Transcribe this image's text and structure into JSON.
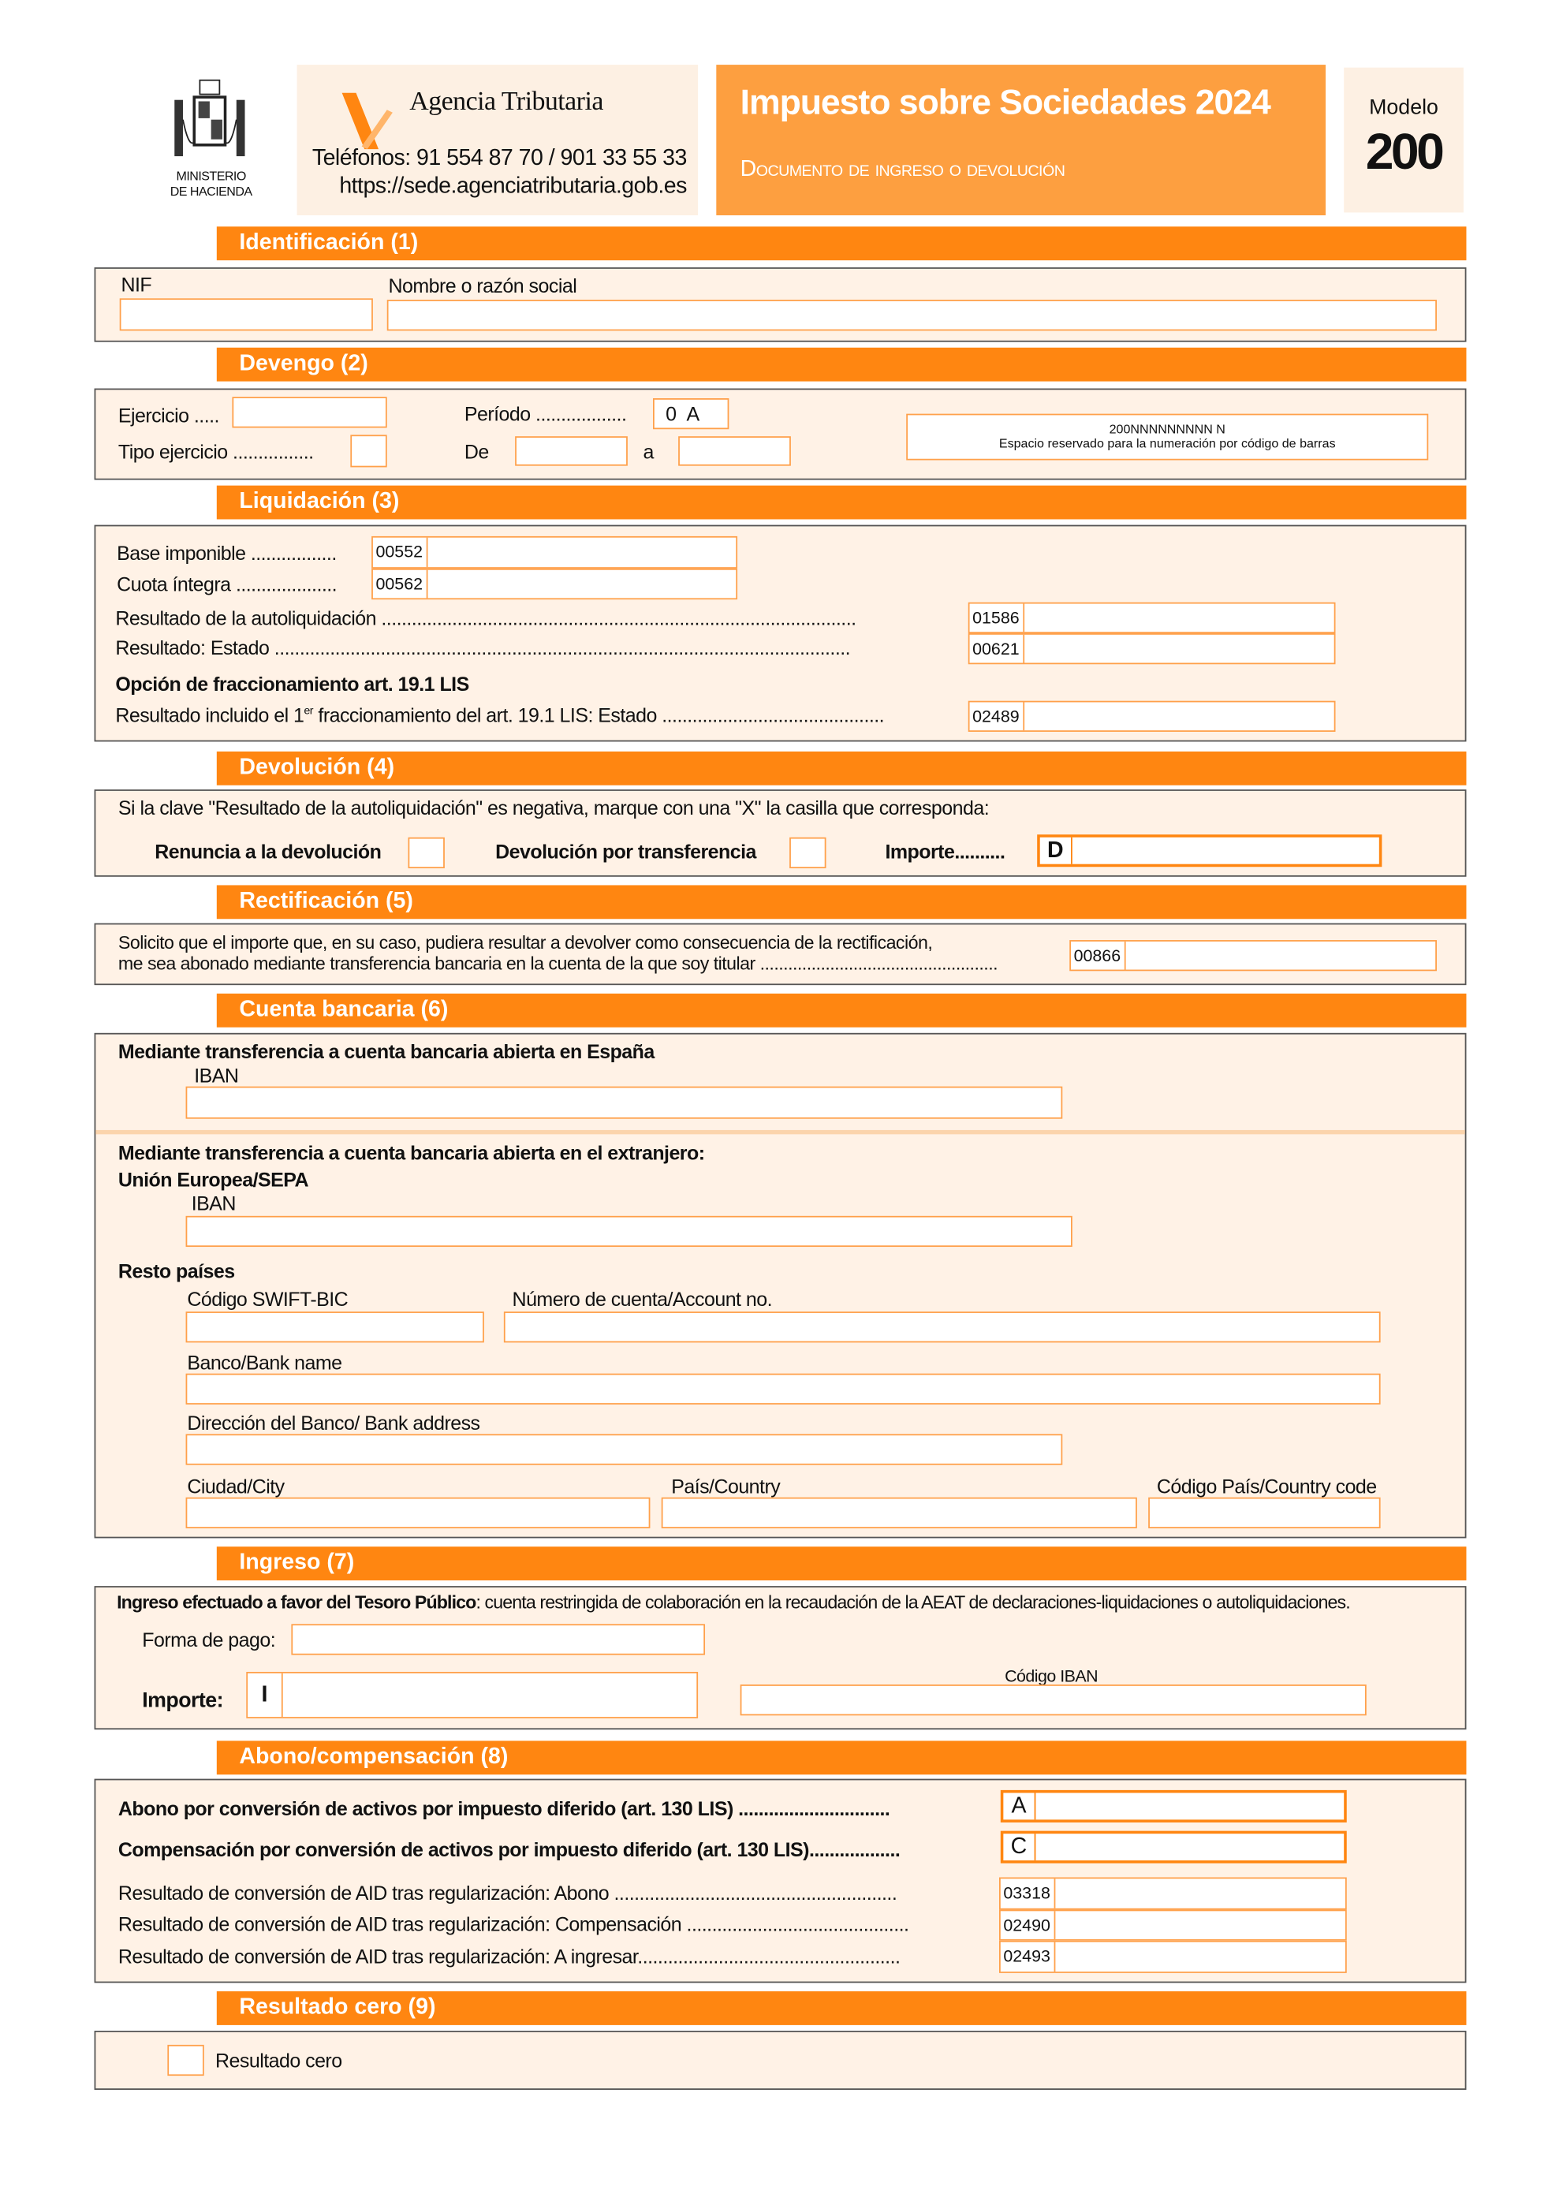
{
  "header": {
    "ministry_line1": "MINISTERIO",
    "ministry_line2": "DE HACIENDA",
    "agency_name": "Agencia Tributaria",
    "phones": "Teléfonos: 91 554 87 70 / 901 33 55 33",
    "website": "https://sede.agenciatributaria.gob.es",
    "title": "Impuesto sobre Sociedades 2024",
    "subtitle": "Documento de ingreso o devolución",
    "modelo_label": "Modelo",
    "modelo_number": "200"
  },
  "colors": {
    "section_header": "#ff8611",
    "title_box": "#fd9f40",
    "panel_bg": "#fff2e6",
    "field_border": "#ffa04a"
  },
  "s1": {
    "title": "Identificación (1)",
    "nif": "NIF",
    "nombre": "Nombre o razón social"
  },
  "s2": {
    "title": "Devengo (2)",
    "ejercicio": "Ejercicio .....",
    "tipo": "Tipo ejercicio ................",
    "periodo": "Período ..................",
    "periodo_value": "0  A",
    "de": "De",
    "a": "a",
    "barcode_number": "200NNNNNNNNN N",
    "barcode_note": "Espacio reservado para la numeración por código de barras"
  },
  "s3": {
    "title": "Liquidación (3)",
    "base": "Base imponible .................",
    "base_code": "00552",
    "cuota": "Cuota íntegra ....................",
    "cuota_code": "00562",
    "res_auto": "Resultado de la autoliquidación ..............................................................................................",
    "res_auto_code": "01586",
    "res_estado": "Resultado: Estado ..................................................................................................................",
    "res_estado_code": "00621",
    "opcion": "Opción de fraccionamiento art. 19.1 LIS",
    "res_incl_a": "Resultado incluido el 1",
    "res_incl_sup": "er",
    "res_incl_b": " fraccionamiento del art. 19.1 LIS: Estado ............................................",
    "res_incl_code": "02489"
  },
  "s4": {
    "title": "Devolución (4)",
    "instr": "Si la clave \"Resultado de la autoliquidación\" es negativa, marque con una \"X\" la casilla que corresponda:",
    "renuncia": "Renuncia a la devolución",
    "transferencia": "Devolución por transferencia",
    "importe": "Importe..........",
    "importe_letter": "D"
  },
  "s5": {
    "title": "Rectificación (5)",
    "line1": "Solicito que el importe que, en su caso, pudiera resultar a devolver como consecuencia de la rectificación,",
    "line2": "me sea abonado mediante transferencia bancaria en la cuenta de la que soy titular ...................................................",
    "code": "00866"
  },
  "s6": {
    "title": "Cuenta bancaria (6)",
    "espana": "Mediante transferencia a cuenta bancaria abierta en España",
    "iban": "IBAN",
    "extranjero": "Mediante transferencia a cuenta bancaria abierta en el extranjero:",
    "ue": "Unión Europea/SEPA",
    "iban2": "IBAN",
    "resto": "Resto países",
    "swift": "Código SWIFT-BIC",
    "cuenta": "Número de cuenta/Account no.",
    "banco": "Banco/Bank name",
    "direccion": "Dirección del Banco/ Bank address",
    "ciudad": "Ciudad/City",
    "pais": "País/Country",
    "codigo_pais": "Código País/Country code"
  },
  "s7": {
    "title": "Ingreso (7)",
    "desc_bold": "Ingreso efectuado a favor del Tesoro Público",
    "desc": ": cuenta restringida de colaboración en la recaudación de la AEAT de declaraciones-liquidaciones o autoliquidaciones.",
    "forma_pago": "Forma de pago:",
    "importe": "Importe:",
    "importe_letter": "I",
    "codigo_iban": "Código IBAN"
  },
  "s8": {
    "title": "Abono/compensación (8)",
    "abono": "Abono por conversión de activos por impuesto diferido (art. 130 LIS) ..............................",
    "abono_letter": "A",
    "comp": "Compensación por conversión de activos por impuesto diferido (art. 130 LIS)..................",
    "comp_letter": "C",
    "r1": "Resultado de conversión de AID tras regularización: Abono ........................................................",
    "r1_code": "03318",
    "r2": "Resultado de conversión de AID tras regularización: Compensación ............................................",
    "r2_code": "02490",
    "r3": "Resultado de conversión de AID tras regularización: A ingresar....................................................",
    "r3_code": "02493"
  },
  "s9": {
    "title": "Resultado cero (9)",
    "label": "Resultado cero"
  }
}
